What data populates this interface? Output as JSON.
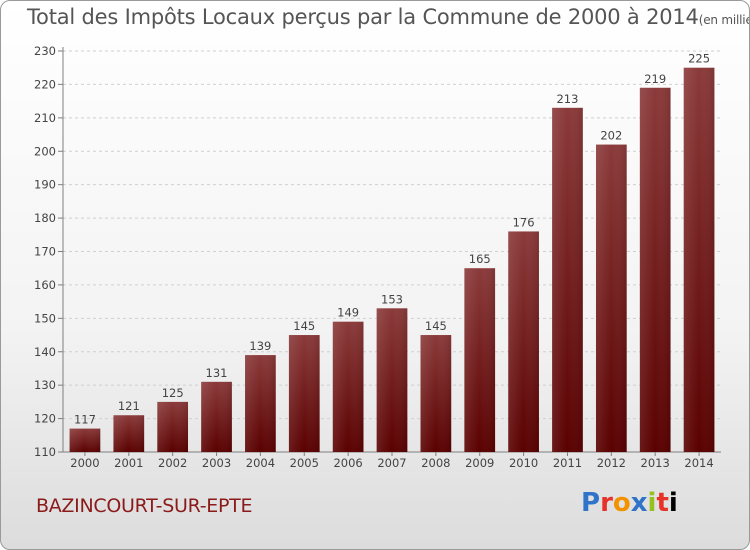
{
  "header": {
    "title": "Total des Impôts Locaux perçus par la Commune de 2000 à 2014",
    "unit": "(en milliers d'€)"
  },
  "commune": "BAZINCOURT-SUR-EPTE",
  "logo": {
    "letters": [
      "P",
      "r",
      "o",
      "x",
      "i",
      "t",
      "i"
    ]
  },
  "colors": {
    "bar_top": "#8b3a3a",
    "bar_bottom": "#5a0000",
    "axis": "#7f7f7f",
    "grid": "#d0d0d0"
  },
  "chart_data": {
    "type": "bar",
    "title": "Total des Impôts Locaux perçus par la Commune de 2000 à 2014",
    "xlabel": "",
    "ylabel": "",
    "categories": [
      "2000",
      "2001",
      "2002",
      "2003",
      "2004",
      "2005",
      "2006",
      "2007",
      "2008",
      "2009",
      "2010",
      "2011",
      "2012",
      "2013",
      "2014"
    ],
    "values": [
      117,
      121,
      125,
      131,
      139,
      145,
      149,
      153,
      145,
      165,
      176,
      213,
      202,
      219,
      225
    ],
    "ylim": [
      110,
      230
    ],
    "yticks": [
      110,
      120,
      130,
      140,
      150,
      160,
      170,
      180,
      190,
      200,
      210,
      220,
      230
    ],
    "grid": true
  }
}
